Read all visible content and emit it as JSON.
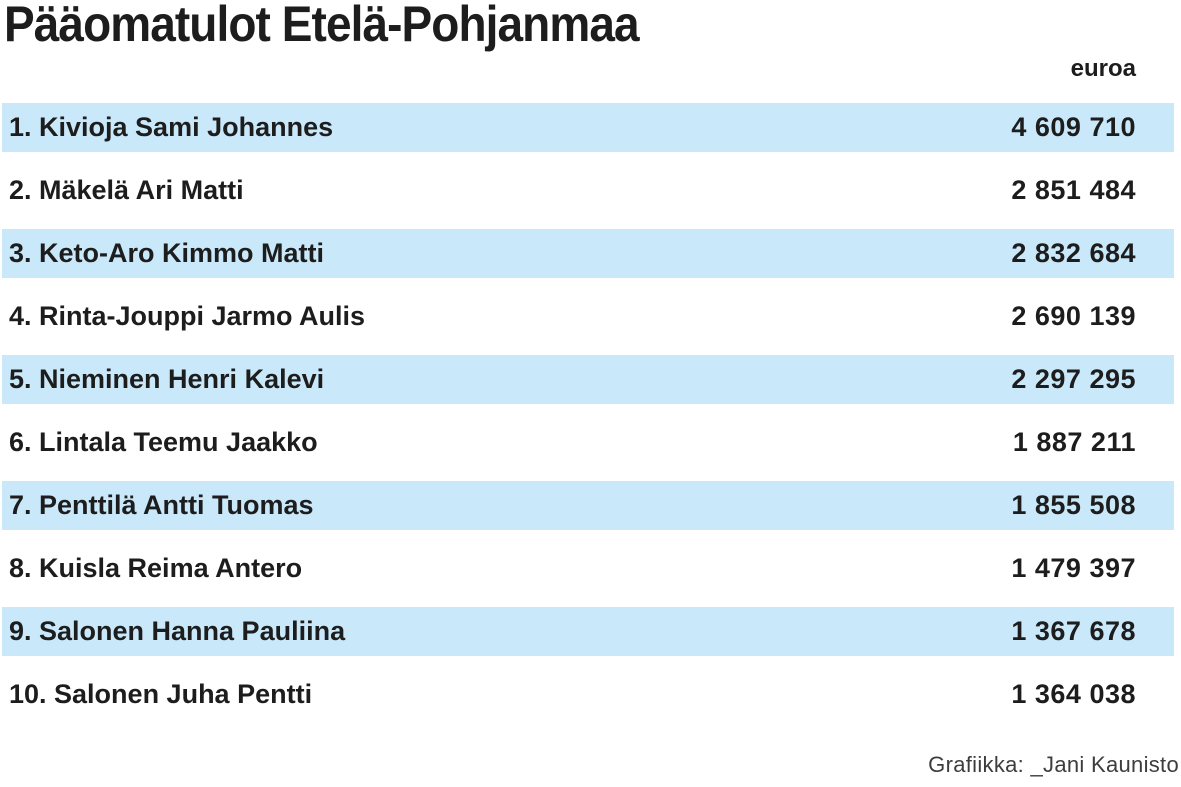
{
  "header": {
    "title": "Pääomatulot Etelä-Pohjanmaa",
    "unit_label": "euroa"
  },
  "table": {
    "rows": [
      {
        "label": "1. Kivioja Sami Johannes",
        "value": "4 609 710"
      },
      {
        "label": "2. Mäkelä Ari Matti",
        "value": "2 851 484"
      },
      {
        "label": "3. Keto-Aro Kimmo Matti",
        "value": "2 832 684"
      },
      {
        "label": "4. Rinta-Jouppi Jarmo Aulis",
        "value": "2 690 139"
      },
      {
        "label": "5. Nieminen Henri Kalevi",
        "value": "2 297 295"
      },
      {
        "label": "6. Lintala Teemu Jaakko",
        "value": "1 887 211"
      },
      {
        "label": "7. Penttilä Antti Tuomas",
        "value": "1 855 508"
      },
      {
        "label": "8. Kuisla Reima Antero",
        "value": "1 479 397"
      },
      {
        "label": "9. Salonen Hanna Pauliina",
        "value": "1 367 678"
      },
      {
        "label": "10. Salonen Juha Pentti",
        "value": "1 364 038"
      }
    ]
  },
  "footer": {
    "credit": "Grafiikka: _Jani Kaunisto"
  },
  "colors": {
    "row_highlight": "#c9e8fa",
    "text": "#1d1d1d",
    "credit_text": "#3d3d3d",
    "background": "#ffffff"
  },
  "chart_data": {
    "type": "table",
    "title": "Pääomatulot Etelä-Pohjanmaa",
    "unit": "euroa",
    "columns": [
      "rank_and_name",
      "euroa"
    ],
    "categories": [
      "Kivioja Sami Johannes",
      "Mäkelä Ari Matti",
      "Keto-Aro Kimmo Matti",
      "Rinta-Jouppi Jarmo Aulis",
      "Nieminen Henri Kalevi",
      "Lintala Teemu Jaakko",
      "Penttilä Antti Tuomas",
      "Kuisla Reima Antero",
      "Salonen Hanna Pauliina",
      "Salonen Juha Pentti"
    ],
    "values": [
      4609710,
      2851484,
      2832684,
      2690139,
      2297295,
      1887211,
      1855508,
      1479397,
      1367678,
      1364038
    ],
    "layout_hints": {
      "striped_rows": "odd rows highlighted light blue",
      "value_alignment": "right",
      "legend": "none",
      "grid": "off"
    },
    "annotations": [
      "Grafiikka: _Jani Kaunisto"
    ]
  }
}
